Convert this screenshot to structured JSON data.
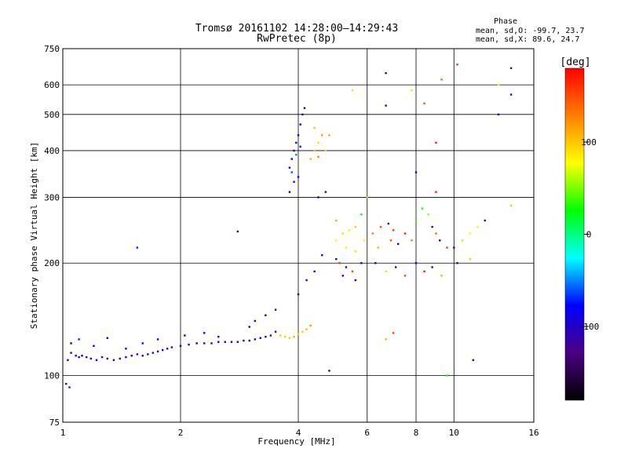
{
  "chart_data": {
    "type": "scatter",
    "title": "Tromsø 20161102 14:28:00–14:29:43",
    "subtitle": "RwPretec (8p)",
    "xlabel": "Frequency [MHz]",
    "ylabel": "Stationary phase Virtual Height [km]",
    "x_scale": "log",
    "y_scale": "log",
    "xlim": [
      1,
      16
    ],
    "ylim": [
      75,
      750
    ],
    "x_ticks": [
      1,
      2,
      4,
      6,
      8,
      10,
      16
    ],
    "y_ticks": [
      75,
      100,
      200,
      300,
      400,
      500,
      600,
      750
    ],
    "grid": true,
    "phase_box": {
      "title": "Phase",
      "line1": "mean, sd,O: -99.7, 23.7",
      "line2": "mean, sd,X:  89.6, 24.7"
    },
    "colorbar": {
      "label": "[deg]",
      "min": -180,
      "max": 180,
      "ticks": [
        100,
        0,
        -100
      ],
      "colors": [
        "#000000",
        "#4b0082",
        "#0000ff",
        "#00ffff",
        "#00ff00",
        "#ffff00",
        "#ff8000",
        "#ff0000"
      ]
    },
    "series": [
      {
        "points": [
          [
            1.02,
            95,
            -120
          ],
          [
            1.04,
            93,
            -110
          ],
          [
            1.03,
            110,
            -100
          ],
          [
            1.05,
            115,
            -90
          ],
          [
            1.08,
            113,
            -100
          ],
          [
            1.1,
            112,
            -110
          ],
          [
            1.12,
            113,
            -95
          ],
          [
            1.15,
            112,
            -105
          ],
          [
            1.18,
            111,
            -115
          ],
          [
            1.22,
            110,
            -100
          ],
          [
            1.26,
            112,
            -110
          ],
          [
            1.3,
            111,
            -120
          ],
          [
            1.35,
            110,
            -105
          ],
          [
            1.4,
            111,
            -115
          ],
          [
            1.45,
            112,
            -100
          ],
          [
            1.5,
            113,
            -110
          ],
          [
            1.55,
            114,
            -120
          ],
          [
            1.6,
            113,
            -100
          ],
          [
            1.65,
            114,
            -110
          ],
          [
            1.7,
            115,
            -105
          ],
          [
            1.75,
            116,
            -115
          ],
          [
            1.8,
            117,
            -100
          ],
          [
            1.85,
            118,
            -110
          ],
          [
            1.9,
            119,
            -105
          ],
          [
            2.0,
            120,
            -95
          ],
          [
            2.1,
            121,
            -100
          ],
          [
            2.2,
            122,
            -90
          ],
          [
            2.3,
            122,
            -100
          ],
          [
            2.4,
            122,
            -105
          ],
          [
            2.5,
            123,
            -95
          ],
          [
            2.6,
            123,
            -100
          ],
          [
            2.7,
            123,
            -95
          ],
          [
            2.8,
            123,
            -100
          ],
          [
            2.9,
            124,
            -90
          ],
          [
            3.0,
            124,
            -100
          ],
          [
            3.1,
            125,
            -95
          ],
          [
            3.2,
            126,
            -90
          ],
          [
            3.3,
            127,
            -100
          ],
          [
            3.4,
            128,
            -110
          ],
          [
            3.5,
            131,
            -120
          ],
          [
            1.05,
            122,
            -80
          ],
          [
            1.1,
            125,
            -70
          ],
          [
            1.2,
            120,
            -85
          ],
          [
            1.3,
            126,
            -80
          ],
          [
            1.45,
            118,
            -90
          ],
          [
            1.6,
            122,
            -75
          ],
          [
            1.55,
            220,
            -70
          ],
          [
            1.75,
            125,
            -80
          ],
          [
            2.05,
            128,
            -85
          ],
          [
            2.3,
            130,
            -80
          ],
          [
            2.5,
            127,
            -75
          ],
          [
            2.8,
            243,
            -120
          ],
          [
            3.0,
            135,
            -90
          ],
          [
            3.1,
            140,
            -80
          ],
          [
            3.3,
            145,
            -95
          ],
          [
            3.5,
            150,
            -130
          ],
          [
            3.6,
            128,
            100
          ],
          [
            3.7,
            127,
            95
          ],
          [
            3.8,
            126,
            100
          ],
          [
            3.9,
            127,
            110
          ],
          [
            4.0,
            129,
            100
          ],
          [
            4.1,
            131,
            95
          ],
          [
            4.2,
            133,
            105
          ],
          [
            4.3,
            136,
            120
          ],
          [
            4.0,
            165,
            -110
          ],
          [
            4.2,
            180,
            -100
          ],
          [
            4.4,
            190,
            -90
          ],
          [
            4.6,
            210,
            -95
          ],
          [
            3.8,
            310,
            -90
          ],
          [
            3.9,
            330,
            -100
          ],
          [
            4.0,
            340,
            -95
          ],
          [
            3.8,
            360,
            -80
          ],
          [
            3.85,
            380,
            -90
          ],
          [
            3.9,
            400,
            -100
          ],
          [
            3.95,
            420,
            -85
          ],
          [
            4.0,
            440,
            -95
          ],
          [
            4.05,
            470,
            -80
          ],
          [
            4.1,
            500,
            -90
          ],
          [
            4.15,
            520,
            -100
          ],
          [
            3.85,
            350,
            -60
          ],
          [
            3.95,
            390,
            -50
          ],
          [
            4.05,
            410,
            -70
          ],
          [
            4.3,
            380,
            110
          ],
          [
            4.4,
            400,
            100
          ],
          [
            4.5,
            420,
            90
          ],
          [
            4.6,
            440,
            120
          ],
          [
            4.5,
            385,
            130
          ],
          [
            4.7,
            400,
            95
          ],
          [
            4.4,
            460,
            100
          ],
          [
            4.8,
            440,
            115
          ],
          [
            4.5,
            300,
            -90
          ],
          [
            4.7,
            310,
            -100
          ],
          [
            5.0,
            230,
            80
          ],
          [
            5.2,
            240,
            90
          ],
          [
            5.4,
            245,
            85
          ],
          [
            5.6,
            250,
            100
          ],
          [
            5.3,
            220,
            70
          ],
          [
            5.6,
            215,
            90
          ],
          [
            5.9,
            230,
            80
          ],
          [
            5.0,
            205,
            -90
          ],
          [
            5.1,
            200,
            160
          ],
          [
            5.3,
            195,
            -100
          ],
          [
            5.5,
            190,
            150
          ],
          [
            5.8,
            200,
            -95
          ],
          [
            5.2,
            185,
            -110
          ],
          [
            5.6,
            180,
            -90
          ],
          [
            5.0,
            260,
            40
          ],
          [
            5.8,
            270,
            20
          ],
          [
            6.2,
            240,
            130
          ],
          [
            6.5,
            250,
            150
          ],
          [
            6.8,
            255,
            -120
          ],
          [
            7.0,
            245,
            160
          ],
          [
            6.4,
            220,
            110
          ],
          [
            6.9,
            230,
            150
          ],
          [
            7.2,
            225,
            -100
          ],
          [
            7.5,
            240,
            170
          ],
          [
            6.3,
            200,
            -80
          ],
          [
            6.7,
            190,
            90
          ],
          [
            7.1,
            195,
            -110
          ],
          [
            7.5,
            185,
            150
          ],
          [
            7.8,
            230,
            130
          ],
          [
            8.0,
            260,
            40
          ],
          [
            8.3,
            280,
            20
          ],
          [
            8.6,
            270,
            60
          ],
          [
            8.8,
            250,
            -110
          ],
          [
            9.0,
            240,
            140
          ],
          [
            9.2,
            230,
            -90
          ],
          [
            9.6,
            220,
            160
          ],
          [
            8.0,
            200,
            -100
          ],
          [
            8.4,
            190,
            170
          ],
          [
            8.8,
            195,
            -120
          ],
          [
            9.3,
            185,
            110
          ],
          [
            10.0,
            220,
            -100
          ],
          [
            10.5,
            230,
            60
          ],
          [
            11.0,
            240,
            80
          ],
          [
            11.5,
            250,
            70
          ],
          [
            10.2,
            200,
            -110
          ],
          [
            11.0,
            205,
            100
          ],
          [
            12.0,
            260,
            -110
          ],
          [
            14.0,
            285,
            100
          ],
          [
            6.7,
            645,
            -120
          ],
          [
            6.7,
            528,
            -100
          ],
          [
            7.8,
            580,
            90
          ],
          [
            8.4,
            535,
            150
          ],
          [
            9.3,
            620,
            140
          ],
          [
            10.2,
            680,
            160
          ],
          [
            13.0,
            600,
            80
          ],
          [
            14.0,
            665,
            -120
          ],
          [
            14.0,
            565,
            -110
          ],
          [
            13.0,
            500,
            -110
          ],
          [
            9.0,
            420,
            170
          ],
          [
            8.0,
            350,
            -90
          ],
          [
            9.0,
            310,
            170
          ],
          [
            6.7,
            125,
            110
          ],
          [
            7.0,
            130,
            150
          ],
          [
            11.2,
            110,
            -110
          ],
          [
            9.6,
            100,
            30
          ],
          [
            4.8,
            103,
            -140
          ],
          [
            5.5,
            580,
            90
          ],
          [
            6.0,
            300,
            50
          ]
        ]
      }
    ]
  }
}
